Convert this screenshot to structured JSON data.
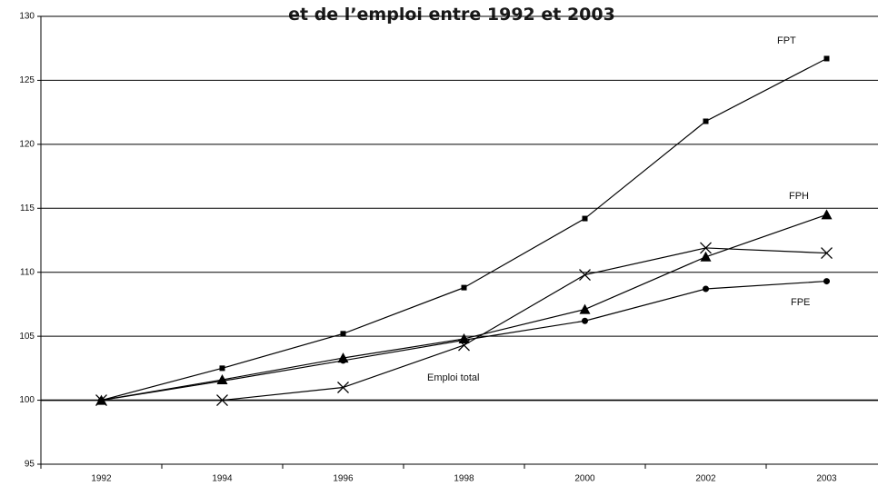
{
  "chart_data": {
    "type": "line",
    "title": "et de l’emploi entre 1992 et 2003",
    "categories": [
      "1992",
      "1994",
      "1996",
      "1998",
      "2000",
      "2002",
      "2003"
    ],
    "series": [
      {
        "name": "FPT",
        "color": "#000000",
        "marker": "square",
        "values": [
          100,
          102.5,
          105.2,
          108.8,
          114.2,
          121.8,
          126.7
        ]
      },
      {
        "name": "FPH",
        "color": "#000000",
        "marker": "triangle",
        "values": [
          100,
          101.6,
          103.3,
          104.8,
          107.1,
          111.2,
          114.5
        ]
      },
      {
        "name": "FPE",
        "color": "#000000",
        "marker": "circle",
        "values": [
          100,
          101.5,
          103.1,
          104.7,
          106.2,
          108.7,
          109.3
        ]
      },
      {
        "name": "Emploi total",
        "color": "#000000",
        "marker": "x",
        "values": [
          100,
          100,
          101.0,
          104.3,
          109.8,
          111.9,
          111.5
        ]
      }
    ],
    "ylim": [
      95,
      130
    ],
    "yticks": [
      95,
      100,
      105,
      110,
      115,
      120,
      125,
      130
    ],
    "grid": true
  }
}
